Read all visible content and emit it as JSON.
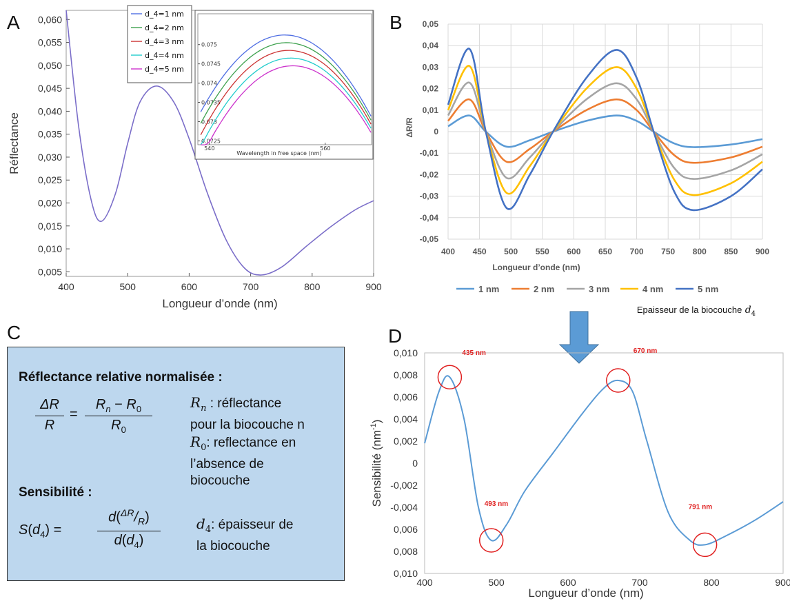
{
  "panels": {
    "a": "A",
    "b": "B",
    "c": "C",
    "d": "D"
  },
  "chart_data": [
    {
      "id": "A",
      "type": "line",
      "xlabel": "Longueur d’onde (nm)",
      "ylabel": "Réflectance",
      "xlim": [
        400,
        900
      ],
      "ylim": [
        0.004,
        0.062
      ],
      "xticks": [
        "400",
        "500",
        "600",
        "700",
        "800",
        "900"
      ],
      "yticks": [
        "0,005",
        "0,010",
        "0,015",
        "0,020",
        "0,025",
        "0,030",
        "0,035",
        "0,040",
        "0,045",
        "0,050",
        "0,055",
        "0,060"
      ],
      "grid": false,
      "x": [
        400,
        420,
        440,
        457,
        480,
        500,
        520,
        547,
        575,
        600,
        630,
        660,
        690,
        717,
        750,
        790,
        830,
        870,
        900
      ],
      "y": [
        0.062,
        0.037,
        0.021,
        0.016,
        0.022,
        0.033,
        0.042,
        0.0455,
        0.042,
        0.034,
        0.022,
        0.012,
        0.0058,
        0.0043,
        0.006,
        0.0105,
        0.0148,
        0.0185,
        0.0205
      ],
      "legend": {
        "position": "top",
        "entries": [
          {
            "name": "d_4=1 nm",
            "color": "#4f6ee3"
          },
          {
            "name": "d_4=2 nm",
            "color": "#3fa24f"
          },
          {
            "name": "d_4=3 nm",
            "color": "#cc3333"
          },
          {
            "name": "d_4=4 nm",
            "color": "#22cccc"
          },
          {
            "name": "d_4=5 nm",
            "color": "#cc33cc"
          }
        ]
      },
      "line_color": "#7b6ec9",
      "inset": {
        "xlabel": "Wavelength in free space (nm)",
        "xlim": [
          538,
          568
        ],
        "ylim": [
          0.0724,
          0.0758
        ],
        "xticks": [
          "540",
          "560"
        ],
        "yticks": [
          "0.0725",
          "0.073",
          "0.0735",
          "0.074",
          "0.0745",
          "0.075"
        ],
        "peak_x": 553,
        "series": [
          {
            "name": "d_4=1 nm",
            "color": "#4f6ee3",
            "peak": 0.07525
          },
          {
            "name": "d_4=2 nm",
            "color": "#3fa24f",
            "peak": 0.07505
          },
          {
            "name": "d_4=3 nm",
            "color": "#cc3333",
            "peak": 0.07485
          },
          {
            "name": "d_4=4 nm",
            "color": "#22cccc",
            "peak": 0.07465
          },
          {
            "name": "d_4=5 nm",
            "color": "#cc33cc",
            "peak": 0.07445
          }
        ]
      }
    },
    {
      "id": "B",
      "type": "line",
      "xlabel": "Longueur d’onde (nm)",
      "ylabel": "ΔR/R",
      "xlim": [
        400,
        900
      ],
      "ylim": [
        -0.05,
        0.05
      ],
      "xticks": [
        "400",
        "450",
        "500",
        "550",
        "600",
        "650",
        "700",
        "750",
        "800",
        "850",
        "900"
      ],
      "yticks": [
        "0,05",
        "0,04",
        "0,03",
        "0,02",
        "0,01",
        "0",
        "-0,01",
        "-0,02",
        "-0,03",
        "-0,04",
        "-0,05"
      ],
      "grid": true,
      "legend_position": "bottom",
      "x": [
        400,
        434,
        460,
        493,
        530,
        567,
        620,
        668,
        700,
        727,
        760,
        790,
        850,
        900
      ],
      "series": [
        {
          "name": "1 nm",
          "color": "#5b9bd5",
          "y": [
            0.0025,
            0.0075,
            0.0,
            -0.007,
            -0.004,
            0.0,
            0.005,
            0.0075,
            0.005,
            0.0,
            -0.0055,
            -0.0072,
            -0.006,
            -0.0035
          ]
        },
        {
          "name": "2 nm",
          "color": "#ed7d31",
          "y": [
            0.005,
            0.015,
            0.0,
            -0.014,
            -0.008,
            0.0,
            0.01,
            0.015,
            0.01,
            0.0,
            -0.011,
            -0.0145,
            -0.012,
            -0.007
          ]
        },
        {
          "name": "3 nm",
          "color": "#a5a5a5",
          "y": [
            0.0075,
            0.0228,
            0.0,
            -0.0215,
            -0.012,
            0.0,
            0.015,
            0.0225,
            0.015,
            0.0,
            -0.017,
            -0.022,
            -0.018,
            -0.0105
          ]
        },
        {
          "name": "4 nm",
          "color": "#ffc000",
          "y": [
            0.01,
            0.0305,
            0.0,
            -0.0285,
            -0.016,
            0.0,
            0.02,
            0.03,
            0.02,
            0.0,
            -0.0225,
            -0.0295,
            -0.024,
            -0.014
          ]
        },
        {
          "name": "5 nm",
          "color": "#4472c4",
          "y": [
            0.0125,
            0.0385,
            0.0,
            -0.0355,
            -0.02,
            0.0,
            0.025,
            0.038,
            0.025,
            0.0,
            -0.028,
            -0.0365,
            -0.03,
            -0.0175
          ]
        }
      ],
      "legend_note": "Epaisseur de la biocouche"
    },
    {
      "id": "D",
      "type": "line",
      "xlabel": "Longueur d’onde (nm)",
      "ylabel": "Sensibilité (nm",
      "ylabel_sup": "-1",
      "ylabel_end": ")",
      "xlim": [
        400,
        900
      ],
      "ylim": [
        -0.01,
        0.01
      ],
      "xticks": [
        "400",
        "500",
        "600",
        "700",
        "800",
        "900"
      ],
      "yticks": [
        "0,010",
        "0,008",
        "0,006",
        "0,004",
        "0,002",
        "0",
        "-0,002",
        "-0,004",
        "0,006",
        "0,008",
        "0,010"
      ],
      "grid": false,
      "color": "#5b9bd5",
      "x": [
        400,
        420,
        435,
        455,
        475,
        493,
        515,
        540,
        580,
        620,
        650,
        670,
        690,
        710,
        740,
        770,
        791,
        820,
        860,
        900
      ],
      "y": [
        0.0018,
        0.0065,
        0.0078,
        0.004,
        -0.004,
        -0.007,
        -0.0055,
        -0.0025,
        0.001,
        0.0045,
        0.0068,
        0.0075,
        0.0065,
        0.002,
        -0.0045,
        -0.007,
        -0.0074,
        -0.0066,
        -0.0052,
        -0.0035
      ],
      "annotations": [
        {
          "label": "435 nm",
          "x": 435,
          "y": 0.0078
        },
        {
          "label": "493 nm",
          "x": 493,
          "y": -0.007
        },
        {
          "label": "670 nm",
          "x": 670,
          "y": 0.0075
        },
        {
          "label": "791 nm",
          "x": 791,
          "y": -0.0074
        }
      ],
      "annotation_color": "#e02020"
    }
  ],
  "formula_box": {
    "heading": "Réflectance relative normalisée :",
    "rn_desc_1": ": réflectance",
    "rn_desc_2": "pour la biocouche n",
    "r0_desc_1": ": reflectance en",
    "r0_desc_2": "l’absence de",
    "r0_desc_3": "biocouche",
    "sens_heading": "Sensibilité :",
    "d4_desc_1": ": épaisseur de",
    "d4_desc_2": "la biocouche",
    "bg_color": "#bdd7ee"
  },
  "arrow_color": "#5b9bd5"
}
